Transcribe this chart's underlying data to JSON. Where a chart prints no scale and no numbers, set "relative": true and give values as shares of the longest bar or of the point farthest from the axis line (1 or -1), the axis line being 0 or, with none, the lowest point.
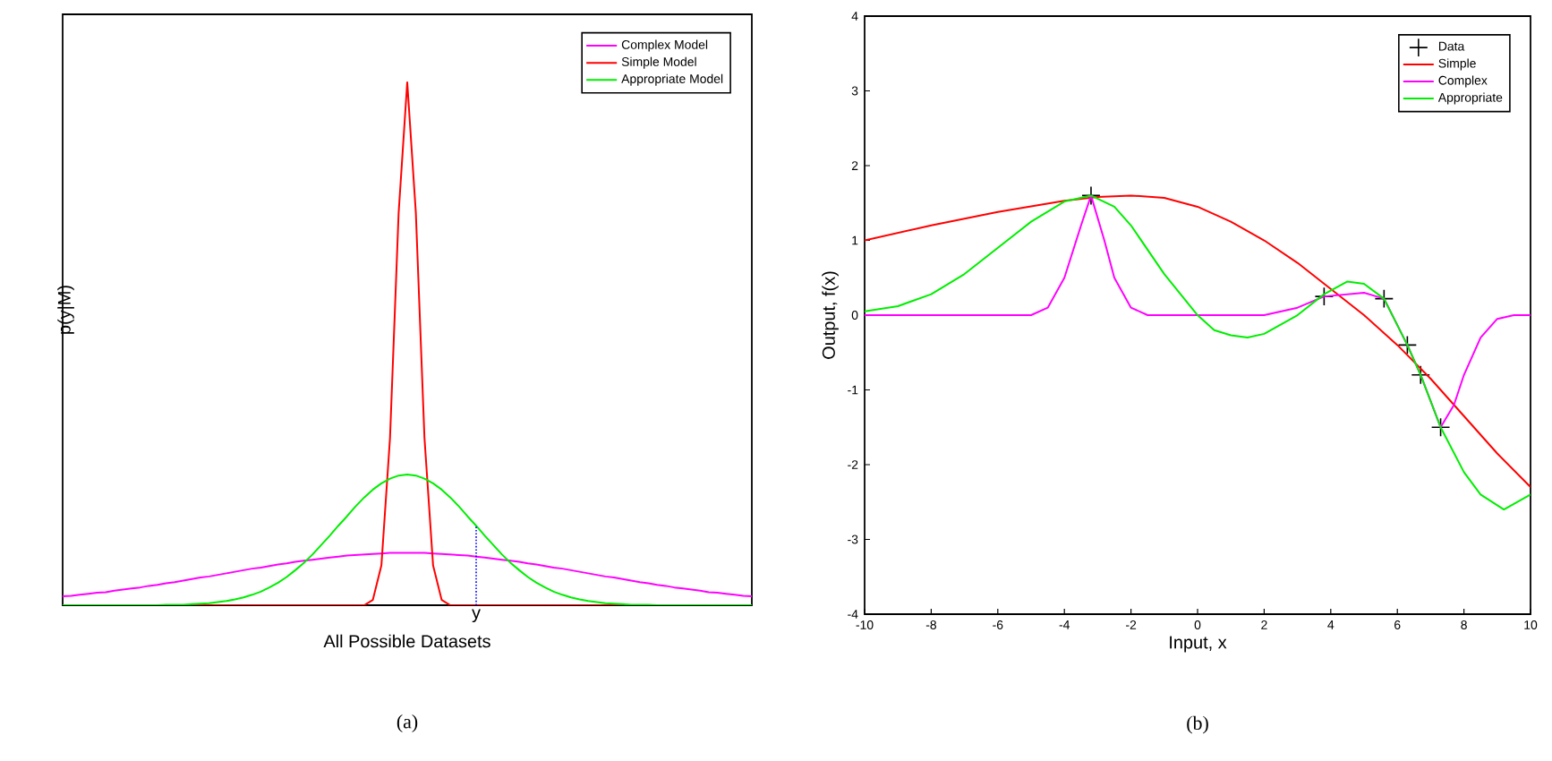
{
  "chart_data": [
    {
      "type": "line",
      "relative": true,
      "xlabel": "All Possible Datasets",
      "ylabel": "p(y|M)",
      "legend": "top right",
      "grid": false,
      "categories": [
        null,
        null,
        null,
        null,
        null,
        null,
        null,
        null,
        null,
        null,
        null,
        null,
        null,
        null,
        null,
        null,
        null,
        null,
        null,
        null,
        null,
        null,
        null,
        null,
        null,
        null,
        null,
        null,
        null,
        null,
        null,
        null,
        null,
        null,
        null,
        null,
        null,
        null,
        null,
        null,
        null,
        null,
        null,
        null,
        null,
        null,
        null,
        null,
        null,
        null,
        null,
        null,
        null,
        null,
        null,
        null,
        null,
        null,
        null,
        null,
        null,
        null,
        null,
        null,
        null,
        null,
        null,
        null,
        null,
        null,
        null,
        null,
        null,
        null,
        null,
        null,
        null,
        null,
        null,
        null,
        null
      ],
      "annotations": [
        "(a)",
        "y"
      ],
      "series": [
        {
          "name": "Complex Model",
          "color": "#ff00ff",
          "values": [
            0.017,
            0.018,
            0.02,
            0.022,
            0.024,
            0.025,
            0.028,
            0.03,
            0.032,
            0.034,
            0.037,
            0.039,
            0.042,
            0.044,
            0.047,
            0.05,
            0.053,
            0.055,
            0.058,
            0.061,
            0.064,
            0.067,
            0.07,
            0.072,
            0.075,
            0.078,
            0.08,
            0.083,
            0.085,
            0.087,
            0.089,
            0.091,
            0.093,
            0.095,
            0.096,
            0.097,
            0.098,
            0.099,
            0.1,
            0.1,
            0.1,
            0.1,
            0.1,
            0.099,
            0.098,
            0.097,
            0.096,
            0.095,
            0.093,
            0.091,
            0.089,
            0.087,
            0.085,
            0.083,
            0.08,
            0.078,
            0.075,
            0.072,
            0.07,
            0.067,
            0.064,
            0.061,
            0.058,
            0.055,
            0.053,
            0.05,
            0.047,
            0.044,
            0.042,
            0.039,
            0.037,
            0.034,
            0.032,
            0.03,
            0.028,
            0.025,
            0.024,
            0.022,
            0.02,
            0.018,
            0.017
          ]
        },
        {
          "name": "Simple Model",
          "color": "#ff0000",
          "values": [
            null,
            null,
            null,
            null,
            null,
            null,
            null,
            null,
            null,
            null,
            null,
            null,
            null,
            null,
            null,
            0,
            0,
            0,
            0,
            0,
            0,
            0,
            0,
            0,
            0,
            0,
            0,
            0,
            0,
            0,
            0,
            0,
            0,
            0,
            0,
            0,
            0.01,
            0.076,
            0.32,
            0.75,
            1,
            0.75,
            0.32,
            0.076,
            0.01,
            0,
            0,
            0,
            0,
            0,
            0,
            0,
            0,
            0,
            0,
            0,
            0,
            0,
            0,
            0,
            0,
            0,
            0,
            0,
            0,
            0,
            null,
            null,
            null,
            null,
            null,
            null,
            null,
            null,
            null,
            null,
            null,
            null,
            null,
            null,
            null
          ]
        },
        {
          "name": "Appropriate Model",
          "color": "#00ee00",
          "values": [
            0,
            0,
            0,
            0,
            0,
            0,
            0,
            0,
            0,
            0,
            0,
            0,
            0.001,
            0.001,
            0.001,
            0.002,
            0.003,
            0.004,
            0.006,
            0.008,
            0.011,
            0.015,
            0.02,
            0.026,
            0.034,
            0.043,
            0.054,
            0.067,
            0.081,
            0.097,
            0.115,
            0.133,
            0.152,
            0.17,
            0.189,
            0.206,
            0.221,
            0.233,
            0.242,
            0.248,
            0.25,
            0.248,
            0.242,
            0.233,
            0.221,
            0.206,
            0.189,
            0.17,
            0.152,
            0.133,
            0.115,
            0.097,
            0.081,
            0.067,
            0.054,
            0.043,
            0.034,
            0.026,
            0.02,
            0.015,
            0.011,
            0.008,
            0.006,
            0.004,
            0.003,
            0.002,
            0.001,
            0.001,
            0.001,
            0,
            0,
            0,
            0,
            0,
            0,
            0,
            0,
            0,
            0,
            0,
            0
          ]
        }
      ]
    },
    {
      "type": "line",
      "xlabel": "Input, x",
      "ylabel": "Output, f(x)",
      "xlim": [
        -10,
        10
      ],
      "ylim": [
        -4,
        4
      ],
      "xticks": [
        -10,
        -8,
        -6,
        -4,
        -2,
        0,
        2,
        4,
        6,
        8,
        10
      ],
      "yticks": [
        -4,
        -3,
        -2,
        -1,
        0,
        1,
        2,
        3,
        4
      ],
      "legend": "top right",
      "grid": false,
      "annotations": [
        "(b)"
      ],
      "series": [
        {
          "name": "Data",
          "type": "scatter",
          "marker": "cross",
          "color": "#000000",
          "x": [
            -3.2,
            3.8,
            5.6,
            6.3,
            6.7,
            7.3
          ],
          "values": [
            1.6,
            0.25,
            0.22,
            -0.4,
            -0.8,
            -1.5
          ]
        },
        {
          "name": "Simple",
          "color": "#ff0000",
          "x": [
            -10,
            -8,
            -6,
            -4,
            -3,
            -2,
            -1,
            0,
            1,
            2,
            3,
            4,
            5,
            6,
            7,
            8,
            9,
            10
          ],
          "values": [
            1.0,
            1.2,
            1.38,
            1.53,
            1.58,
            1.6,
            1.57,
            1.45,
            1.25,
            1.0,
            0.7,
            0.35,
            0.0,
            -0.4,
            -0.85,
            -1.35,
            -1.85,
            -2.3
          ]
        },
        {
          "name": "Complex",
          "color": "#ff00ff",
          "x": [
            -10,
            -5,
            -4.5,
            -4,
            -3.5,
            -3.2,
            -2.8,
            -2.5,
            -2,
            -1.5,
            2,
            3,
            3.8,
            5,
            5.6,
            6.3,
            6.7,
            7.3,
            7.7,
            8,
            8.5,
            9,
            9.5,
            10
          ],
          "values": [
            0,
            0,
            0.1,
            0.5,
            1.2,
            1.6,
            1.0,
            0.5,
            0.1,
            0,
            0,
            0.1,
            0.25,
            0.3,
            0.22,
            -0.4,
            -0.8,
            -1.5,
            -1.2,
            -0.8,
            -0.3,
            -0.05,
            0,
            0
          ]
        },
        {
          "name": "Appropriate",
          "color": "#00ee00",
          "x": [
            -10,
            -9,
            -8,
            -7,
            -6,
            -5,
            -4,
            -3.2,
            -2.5,
            -2,
            -1,
            0,
            0.5,
            1,
            1.5,
            2,
            3,
            3.8,
            4.5,
            5,
            5.6,
            6.3,
            6.7,
            7.3,
            8,
            8.5,
            9.2,
            10
          ],
          "values": [
            0.05,
            0.12,
            0.28,
            0.55,
            0.9,
            1.25,
            1.52,
            1.6,
            1.45,
            1.2,
            0.55,
            0.0,
            -0.2,
            -0.27,
            -0.3,
            -0.25,
            0.0,
            0.28,
            0.45,
            0.42,
            0.22,
            -0.4,
            -0.8,
            -1.5,
            -2.1,
            -2.4,
            -2.6,
            -2.4
          ]
        }
      ]
    }
  ]
}
